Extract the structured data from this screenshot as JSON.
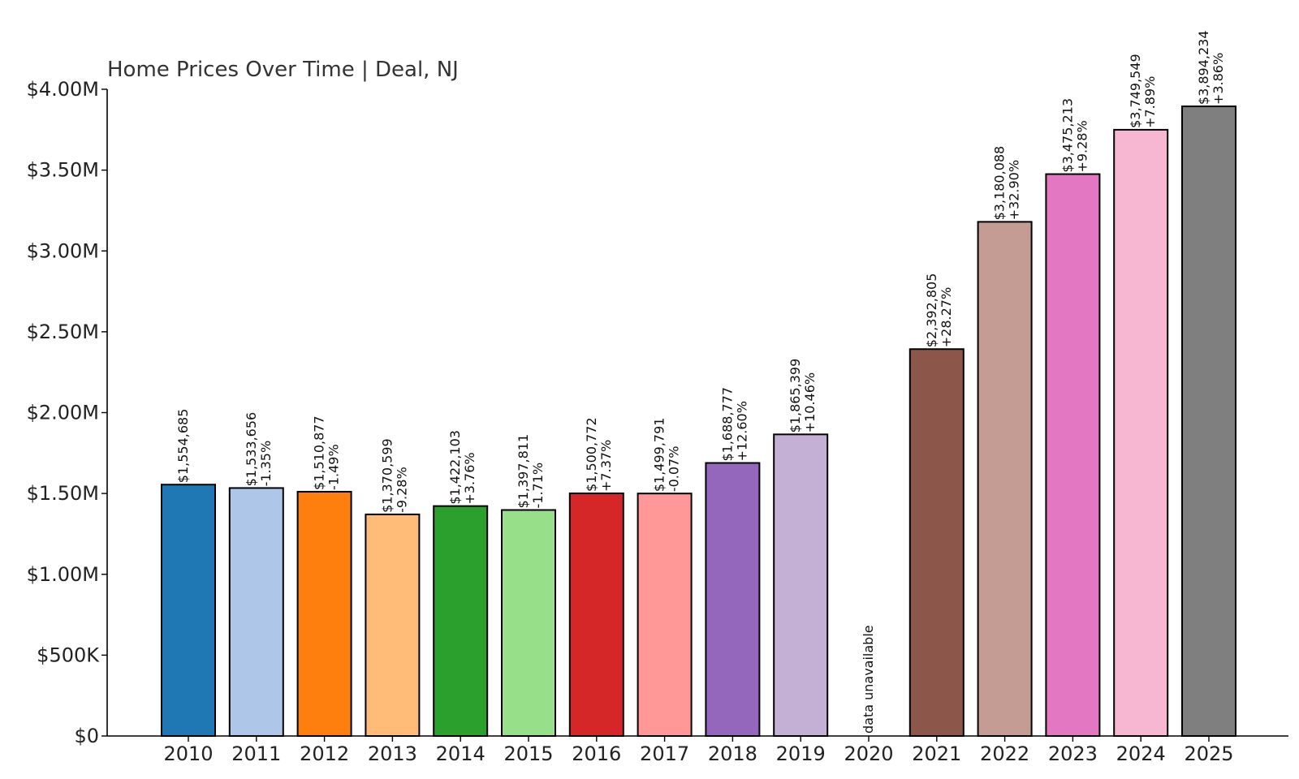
{
  "chart_data": {
    "type": "bar",
    "title": "Home Prices Over Time | Deal, NJ",
    "xlabel": "",
    "ylabel": "",
    "ylim": [
      0,
      4000000
    ],
    "grid": false,
    "y_ticks": [
      {
        "value": 0,
        "label": "$0"
      },
      {
        "value": 500000,
        "label": "$500K"
      },
      {
        "value": 1000000,
        "label": "$1.00M"
      },
      {
        "value": 1500000,
        "label": "$1.50M"
      },
      {
        "value": 2000000,
        "label": "$2.00M"
      },
      {
        "value": 2500000,
        "label": "$2.50M"
      },
      {
        "value": 3000000,
        "label": "$3.00M"
      },
      {
        "value": 3500000,
        "label": "$3.50M"
      },
      {
        "value": 4000000,
        "label": "$4.00M"
      }
    ],
    "categories": [
      "2010",
      "2011",
      "2012",
      "2013",
      "2014",
      "2015",
      "2016",
      "2017",
      "2018",
      "2019",
      "2020",
      "2021",
      "2022",
      "2023",
      "2024",
      "2025"
    ],
    "values": [
      1554685,
      1533656,
      1510877,
      1370599,
      1422103,
      1397811,
      1500772,
      1499791,
      1688777,
      1865399,
      null,
      2392805,
      3180088,
      3475213,
      3749549,
      3894234
    ],
    "value_labels": [
      "$1,554,685",
      "$1,533,656",
      "$1,510,877",
      "$1,370,599",
      "$1,422,103",
      "$1,397,811",
      "$1,500,772",
      "$1,499,791",
      "$1,688,777",
      "$1,865,399",
      "",
      "$2,392,805",
      "$3,180,088",
      "$3,475,213",
      "$3,749,549",
      "$3,894,234"
    ],
    "change_labels": [
      "",
      "-1.35%",
      "-1.49%",
      "-9.28%",
      "+3.76%",
      "-1.71%",
      "+7.37%",
      "-0.07%",
      "+12.60%",
      "+10.46%",
      "",
      "+28.27%",
      "+32.90%",
      "+9.28%",
      "+7.89%",
      "+3.86%"
    ],
    "missing_label": "data unavailable",
    "colors": [
      "#1f77b4",
      "#aec7e8",
      "#ff7f0e",
      "#ffbb78",
      "#2ca02c",
      "#98df8a",
      "#d62728",
      "#ff9896",
      "#9467bd",
      "#c5b0d5",
      "#ffffff",
      "#8c564b",
      "#c49c94",
      "#e377c2",
      "#f7b6d2",
      "#7f7f7f"
    ]
  }
}
